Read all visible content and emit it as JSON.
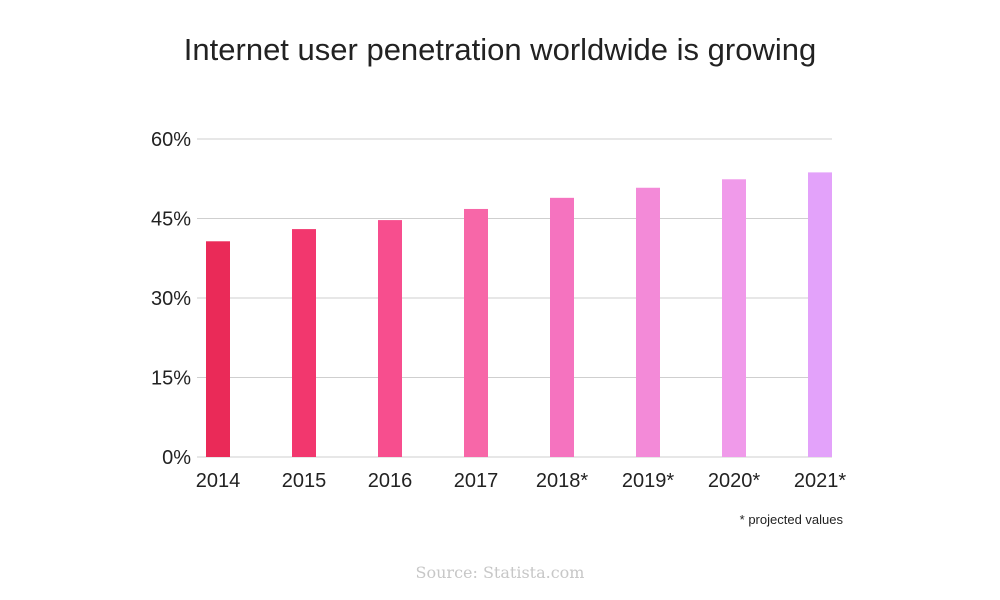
{
  "chart_data": {
    "type": "bar",
    "title": "Internet user penetration worldwide is growing",
    "categories": [
      "2014",
      "2015",
      "2016",
      "2017",
      "2018*",
      "2019*",
      "2020*",
      "2021*"
    ],
    "values": [
      40.7,
      43.0,
      44.7,
      46.8,
      48.9,
      50.8,
      52.4,
      53.7
    ],
    "value_unit": "%",
    "ylim": [
      0,
      60
    ],
    "yticks": [
      "0%",
      "15%",
      "30%",
      "45%",
      "60%"
    ],
    "ytick_values": [
      0,
      15,
      30,
      45,
      60
    ],
    "grid": true,
    "legend": "none",
    "bar_colors": [
      "#ea2a58",
      "#f2376e",
      "#f74e8e",
      "#f767a8",
      "#f573bf",
      "#f38ad8",
      "#f09aea",
      "#e3a2fa"
    ],
    "grid_color": "#cfcfcf"
  },
  "footnote": "* projected values",
  "source": "Source: Statista.com"
}
